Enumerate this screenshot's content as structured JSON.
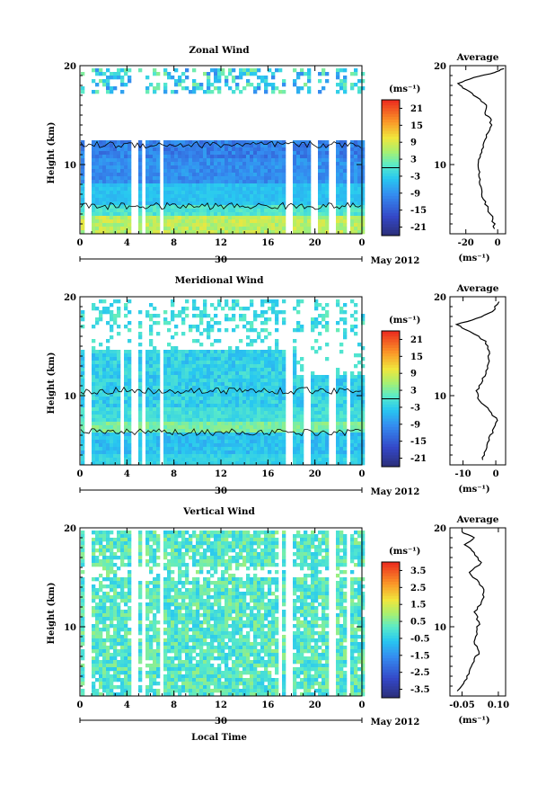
{
  "chart_data": [
    {
      "type": "heatmap",
      "title": "Zonal Wind",
      "ylabel": "Height (km)",
      "ylim": [
        3,
        20
      ],
      "y_ticks": [
        "10",
        "20"
      ],
      "x_ticks": [
        "0",
        "4",
        "8",
        "12",
        "16",
        "20",
        "0"
      ],
      "date_day": "30",
      "date_month": "May 2012",
      "colorbar": {
        "unit": "(ms⁻¹)",
        "range": [
          -24,
          24
        ],
        "ticks": [
          "21",
          "15",
          "9",
          "3",
          "-3",
          "-9",
          "-15",
          "-21"
        ],
        "zero_contour": true
      },
      "average": {
        "title": "Average",
        "xlabel": "(ms⁻¹)",
        "x_ticks": [
          "-20",
          "0"
        ],
        "xlim": [
          -30,
          5
        ],
        "profile": [
          [
            -2,
            3.5
          ],
          [
            -3,
            4.5
          ],
          [
            -6,
            5.5
          ],
          [
            -9,
            6.5
          ],
          [
            -10,
            7.5
          ],
          [
            -11,
            8.5
          ],
          [
            -12,
            9.5
          ],
          [
            -12,
            10.5
          ],
          [
            -10,
            11.5
          ],
          [
            -8,
            12.5
          ],
          [
            -5,
            13.5
          ],
          [
            -4,
            14.5
          ],
          [
            -8,
            15.2
          ],
          [
            -7,
            16
          ],
          [
            -13,
            16.8
          ],
          [
            -20,
            17.6
          ],
          [
            -25,
            18.2
          ],
          [
            -15,
            18.8
          ],
          [
            -2,
            19.3
          ],
          [
            4,
            19.7
          ]
        ]
      }
    },
    {
      "type": "heatmap",
      "title": "Meridional Wind",
      "ylabel": "Height (km)",
      "ylim": [
        3,
        20
      ],
      "y_ticks": [
        "10",
        "20"
      ],
      "x_ticks": [
        "0",
        "4",
        "8",
        "12",
        "16",
        "20",
        "0"
      ],
      "date_day": "30",
      "date_month": "May 2012",
      "colorbar": {
        "unit": "(ms⁻¹)",
        "range": [
          -24,
          24
        ],
        "ticks": [
          "21",
          "15",
          "9",
          "3",
          "-3",
          "-9",
          "-15",
          "-21"
        ],
        "zero_contour": true
      },
      "average": {
        "title": "Average",
        "xlabel": "(ms⁻¹)",
        "x_ticks": [
          "-10",
          "0"
        ],
        "xlim": [
          -14,
          3
        ],
        "profile": [
          [
            -4,
            3.5
          ],
          [
            -3,
            4.5
          ],
          [
            -2,
            5.5
          ],
          [
            -1,
            6.5
          ],
          [
            0.5,
            7.5
          ],
          [
            -2,
            8.5
          ],
          [
            -5,
            9.5
          ],
          [
            -6,
            10.5
          ],
          [
            -4,
            11.5
          ],
          [
            -3,
            12.5
          ],
          [
            -2,
            13.5
          ],
          [
            -2,
            14.5
          ],
          [
            -3,
            15.5
          ],
          [
            -8,
            16.5
          ],
          [
            -12,
            17.2
          ],
          [
            -6,
            17.8
          ],
          [
            -1,
            18.5
          ],
          [
            1,
            19.5
          ]
        ]
      }
    },
    {
      "type": "heatmap",
      "title": "Vertical Wind",
      "ylabel": "Height (km)",
      "xlabel": "Local Time",
      "ylim": [
        3,
        20
      ],
      "y_ticks": [
        "10",
        "20"
      ],
      "x_ticks": [
        "0",
        "4",
        "8",
        "12",
        "16",
        "20",
        "0"
      ],
      "date_day": "30",
      "date_month": "May 2012",
      "colorbar": {
        "unit": "(ms⁻¹)",
        "range": [
          -4,
          4
        ],
        "ticks": [
          "3.5",
          "2.5",
          "1.5",
          "0.5",
          "-0.5",
          "-1.5",
          "-2.5",
          "-3.5"
        ],
        "zero_contour": false
      },
      "average": {
        "title": "Average",
        "xlabel": "(ms⁻¹)",
        "x_ticks": [
          "-0.05",
          "0.10"
        ],
        "xlim": [
          -0.1,
          0.13
        ],
        "profile": [
          [
            -0.07,
            3.5
          ],
          [
            -0.04,
            4.5
          ],
          [
            -0.02,
            5.5
          ],
          [
            0.0,
            6.5
          ],
          [
            0.02,
            7.5
          ],
          [
            0.0,
            8.5
          ],
          [
            0.01,
            9.5
          ],
          [
            0.02,
            10.5
          ],
          [
            0.0,
            11.5
          ],
          [
            0.03,
            12.5
          ],
          [
            0.04,
            13.5
          ],
          [
            0.02,
            14.5
          ],
          [
            -0.02,
            15.5
          ],
          [
            0.03,
            16.5
          ],
          [
            0.0,
            17.5
          ],
          [
            -0.04,
            18.3
          ],
          [
            0.0,
            19.0
          ],
          [
            -0.05,
            19.6
          ]
        ]
      }
    }
  ]
}
